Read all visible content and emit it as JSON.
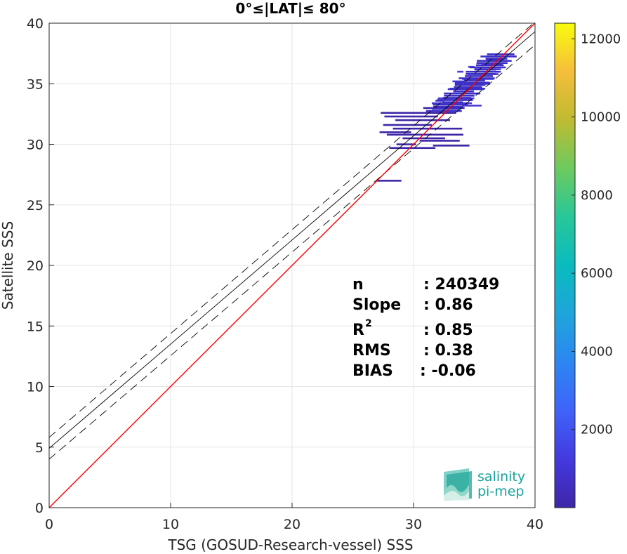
{
  "chart_data": {
    "type": "heatmap",
    "title": "0°≤|LAT|≤ 80°",
    "xlabel": "TSG (GOSUD-Research-vessel) SSS",
    "ylabel": "Satellite SSS",
    "xlim": [
      0,
      40
    ],
    "ylim": [
      0,
      40
    ],
    "xticks": [
      "0",
      "10",
      "20",
      "30",
      "40"
    ],
    "yticks": [
      "0",
      "5",
      "10",
      "15",
      "20",
      "25",
      "30",
      "35",
      "40"
    ],
    "grid": true,
    "colorbar": {
      "range": [
        0,
        12400
      ],
      "ticks": [
        "2000",
        "4000",
        "6000",
        "8000",
        "10000",
        "12000"
      ],
      "tick_values": [
        2000,
        4000,
        6000,
        8000,
        10000,
        12000
      ],
      "colormap": "parula"
    },
    "lines": {
      "identity": {
        "color": "#ff0000",
        "x": [
          0,
          40
        ],
        "y": [
          0,
          40
        ]
      },
      "fit": {
        "color": "#000000",
        "style": "solid",
        "x": [
          0,
          40
        ],
        "y": [
          4.9,
          39.3
        ]
      },
      "fit_upper": {
        "color": "#000000",
        "style": "dashed",
        "x": [
          0,
          40
        ],
        "y": [
          5.8,
          40.1
        ]
      },
      "fit_lower": {
        "color": "#000000",
        "style": "dashed",
        "x": [
          0,
          40
        ],
        "y": [
          4.0,
          38.2
        ]
      }
    },
    "density_segments": [
      {
        "x0": 27.0,
        "x1": 29.0,
        "y": 27.0
      },
      {
        "x0": 27.3,
        "x1": 33.5,
        "y": 32.6
      },
      {
        "x0": 27.6,
        "x1": 32.0,
        "y": 32.3
      },
      {
        "x0": 28.5,
        "x1": 33.0,
        "y": 32.0
      },
      {
        "x0": 27.5,
        "x1": 31.5,
        "y": 31.6
      },
      {
        "x0": 28.3,
        "x1": 34.0,
        "y": 31.3
      },
      {
        "x0": 27.2,
        "x1": 29.8,
        "y": 31.0
      },
      {
        "x0": 27.8,
        "x1": 34.1,
        "y": 30.8
      },
      {
        "x0": 29.1,
        "x1": 32.6,
        "y": 30.5
      },
      {
        "x0": 30.5,
        "x1": 33.8,
        "y": 30.3
      },
      {
        "x0": 28.6,
        "x1": 30.2,
        "y": 30.0
      },
      {
        "x0": 31.6,
        "x1": 34.6,
        "y": 29.9
      },
      {
        "x0": 28.0,
        "x1": 31.8,
        "y": 29.7
      },
      {
        "x0": 30.8,
        "x1": 34.2,
        "y": 33.0
      },
      {
        "x0": 31.5,
        "x1": 34.8,
        "y": 33.4
      },
      {
        "x0": 32.0,
        "x1": 35.0,
        "y": 33.8
      },
      {
        "x0": 32.6,
        "x1": 35.5,
        "y": 34.2
      },
      {
        "x0": 33.0,
        "x1": 35.9,
        "y": 34.6
      },
      {
        "x0": 33.4,
        "x1": 36.3,
        "y": 35.0
      },
      {
        "x0": 34.0,
        "x1": 36.6,
        "y": 35.4
      },
      {
        "x0": 34.5,
        "x1": 37.0,
        "y": 35.8
      },
      {
        "x0": 35.0,
        "x1": 37.2,
        "y": 36.2
      },
      {
        "x0": 35.6,
        "x1": 37.3,
        "y": 36.6
      },
      {
        "x0": 36.0,
        "x1": 37.4,
        "y": 37.0
      },
      {
        "x0": 34.5,
        "x1": 35.0,
        "y": 36.4
      },
      {
        "x0": 33.2,
        "x1": 34.2,
        "y": 35.2
      },
      {
        "x0": 31.8,
        "x1": 32.5,
        "y": 33.6
      },
      {
        "x0": 34.0,
        "x1": 35.6,
        "y": 33.2
      },
      {
        "x0": 33.6,
        "x1": 34.1,
        "y": 36.0
      }
    ]
  },
  "stats": [
    {
      "label": "n",
      "value": ": 240349"
    },
    {
      "label": "Slope",
      "value": ": 0.86"
    },
    {
      "label": "R",
      "sup": "2",
      "value": ": 0.85"
    },
    {
      "label": "RMS",
      "value": ": 0.38"
    },
    {
      "label": "BIAS",
      "value": ": -0.06"
    }
  ],
  "logo": {
    "line1": "salinity",
    "line2": "pi-mep"
  },
  "colors": {
    "identity_line": "#ff0000",
    "fit_line": "#000000",
    "density": "#3e26a8",
    "density_core": "#4a3bd6",
    "logo": "#1aa39b"
  }
}
